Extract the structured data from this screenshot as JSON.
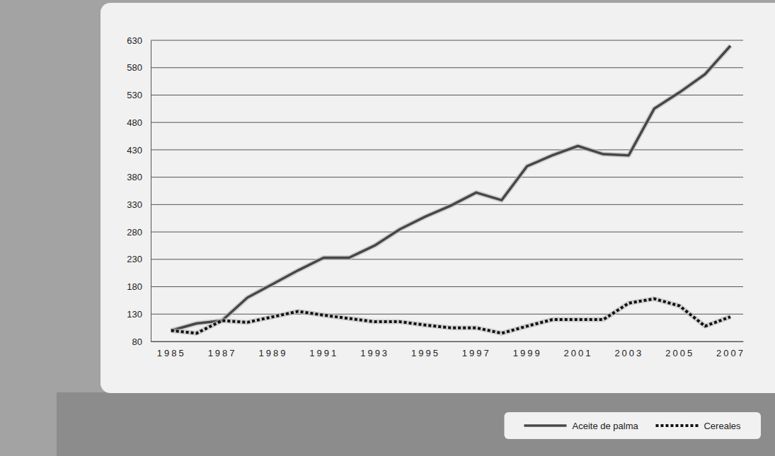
{
  "chart_data": {
    "type": "line",
    "x": [
      1985,
      1986,
      1987,
      1988,
      1989,
      1990,
      1991,
      1992,
      1993,
      1994,
      1995,
      1996,
      1997,
      1998,
      1999,
      2000,
      2001,
      2002,
      2003,
      2004,
      2005,
      2006,
      2007
    ],
    "xlim": [
      1984.2,
      2007.5
    ],
    "xticks": [
      1985,
      1987,
      1989,
      1991,
      1993,
      1995,
      1997,
      1999,
      2001,
      2003,
      2005,
      2007
    ],
    "ylim": [
      80,
      630
    ],
    "yticks": [
      80,
      130,
      180,
      230,
      280,
      330,
      380,
      430,
      480,
      530,
      580,
      630
    ],
    "grid": true,
    "legend": "lower right",
    "series": [
      {
        "name": "Aceite de palma",
        "color": "#474747",
        "line_style": "solid",
        "values": [
          100,
          113,
          118,
          160,
          185,
          210,
          233,
          233,
          255,
          285,
          308,
          328,
          352,
          338,
          400,
          420,
          437,
          422,
          420,
          505,
          535,
          568,
          620
        ]
      },
      {
        "name": "Cereales",
        "color": "#111111",
        "line_style": "dotted",
        "values": [
          100,
          95,
          118,
          115,
          125,
          135,
          128,
          122,
          116,
          116,
          110,
          105,
          105,
          95,
          108,
          120,
          120,
          120,
          150,
          158,
          145,
          108,
          125
        ]
      }
    ]
  }
}
